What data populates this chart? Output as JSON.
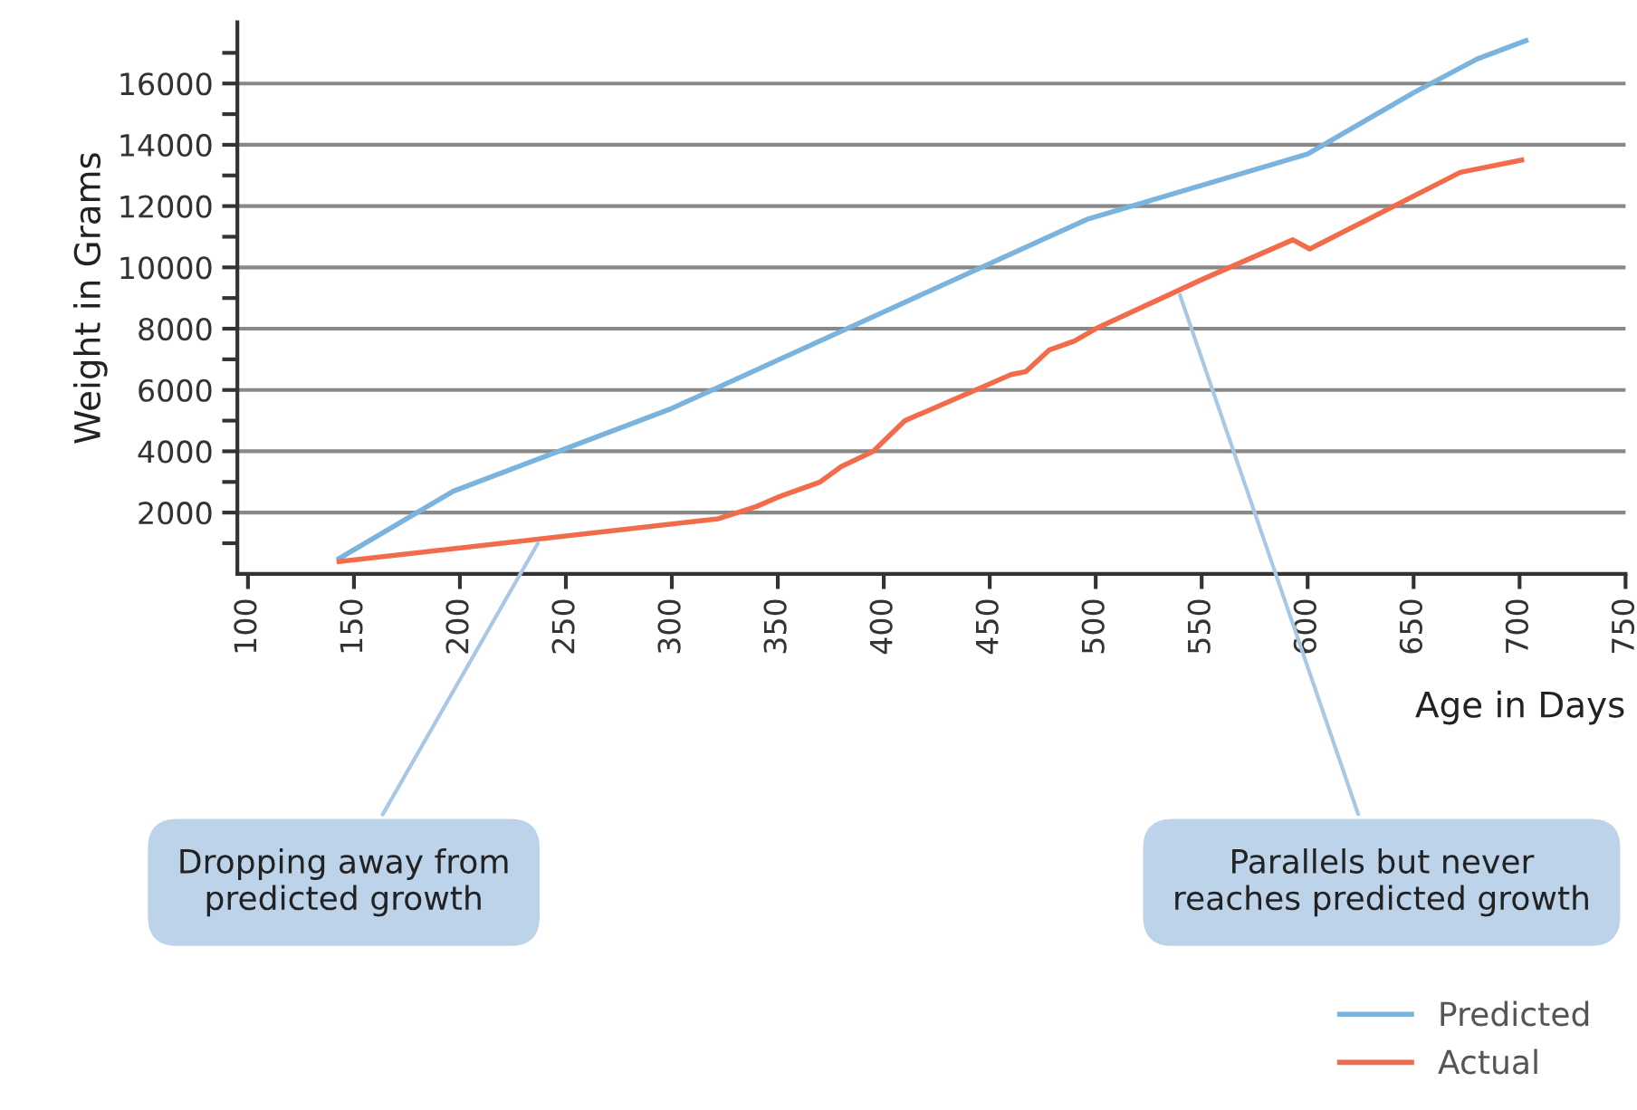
{
  "chart_data": {
    "type": "line",
    "xlabel": "Age in Days",
    "ylabel": "Weight in Grams",
    "xlim": [
      95,
      750
    ],
    "xticks": [
      100,
      150,
      200,
      250,
      300,
      350,
      400,
      450,
      500,
      550,
      600,
      650,
      700,
      750
    ],
    "ylim": [
      0,
      18000
    ],
    "yticks": [
      {
        "value": 1000,
        "label": null
      },
      2000,
      {
        "value": 3000,
        "label": null
      },
      4000,
      {
        "value": 5000,
        "label": null
      },
      6000,
      {
        "value": 7000,
        "label": null
      },
      8000,
      {
        "value": 9000,
        "label": null
      },
      10000,
      {
        "value": 11000,
        "label": null
      },
      12000,
      {
        "value": 13000,
        "label": null
      },
      14000,
      {
        "value": 15000,
        "label": null
      },
      16000,
      {
        "value": 17000,
        "label": null
      }
    ],
    "grid": "y",
    "legend": "bottom right",
    "marker": "none",
    "line_style": "solid",
    "series": [
      {
        "name": "Predicted",
        "color": "#7ab3dd",
        "x": [
          143,
          197,
          300,
          400,
          496,
          600,
          650,
          680,
          703
        ],
        "values": [
          500,
          2700,
          5400,
          8550,
          11570,
          13700,
          15700,
          16800,
          17400
        ]
      },
      {
        "name": "Actual",
        "color": "#f26b4a",
        "x": [
          143,
          322,
          340,
          350,
          370,
          380,
          395,
          410,
          450,
          460,
          467,
          478,
          490,
          500,
          550,
          593,
          601,
          672,
          701
        ],
        "values": [
          400,
          1800,
          2200,
          2500,
          3000,
          3500,
          4000,
          5000,
          6200,
          6500,
          6600,
          7300,
          7600,
          8000,
          9600,
          10900,
          10600,
          13100,
          13500
        ]
      }
    ],
    "annotations": [
      {
        "text": "Dropping away from\npredicted growth",
        "x": 238,
        "y": 1140
      },
      {
        "text": "Parallels but never\nreaches predicted growth",
        "x": 539,
        "y": 9250
      }
    ]
  }
}
